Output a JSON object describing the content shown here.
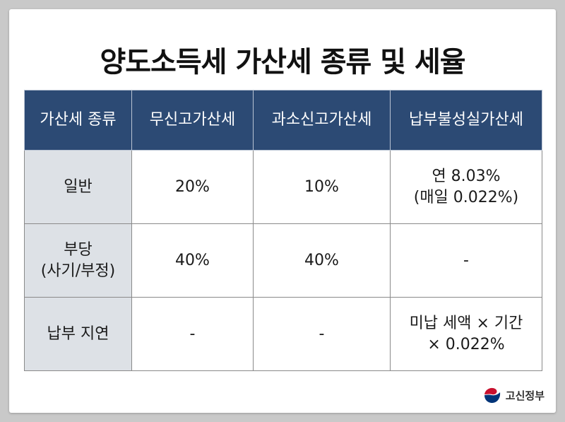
{
  "title": "양도소득세 가산세 종류 및 세율",
  "table": {
    "headers": [
      "가산세 종류",
      "무신고가산세",
      "과소신고가산세",
      "납부불성실가산세"
    ],
    "rows": [
      {
        "label": [
          "일반"
        ],
        "cells": [
          [
            "20%"
          ],
          [
            "10%"
          ],
          [
            "연 8.03%",
            "(매일 0.022%)"
          ]
        ]
      },
      {
        "label": [
          "부당",
          "(사기/부정)"
        ],
        "cells": [
          [
            "40%"
          ],
          [
            "40%"
          ],
          [
            "-"
          ]
        ]
      },
      {
        "label": [
          "납부 지연"
        ],
        "cells": [
          [
            "-"
          ],
          [
            "-"
          ],
          [
            "미납 세액 × 기간",
            "× 0.022%"
          ]
        ]
      }
    ]
  },
  "logo": {
    "text": "고신정부",
    "icon": "government-emblem-icon"
  },
  "colors": {
    "header_bg": "#2c4a74",
    "label_bg": "#dde1e6",
    "emblem_red": "#c8102e",
    "emblem_blue": "#003478"
  }
}
